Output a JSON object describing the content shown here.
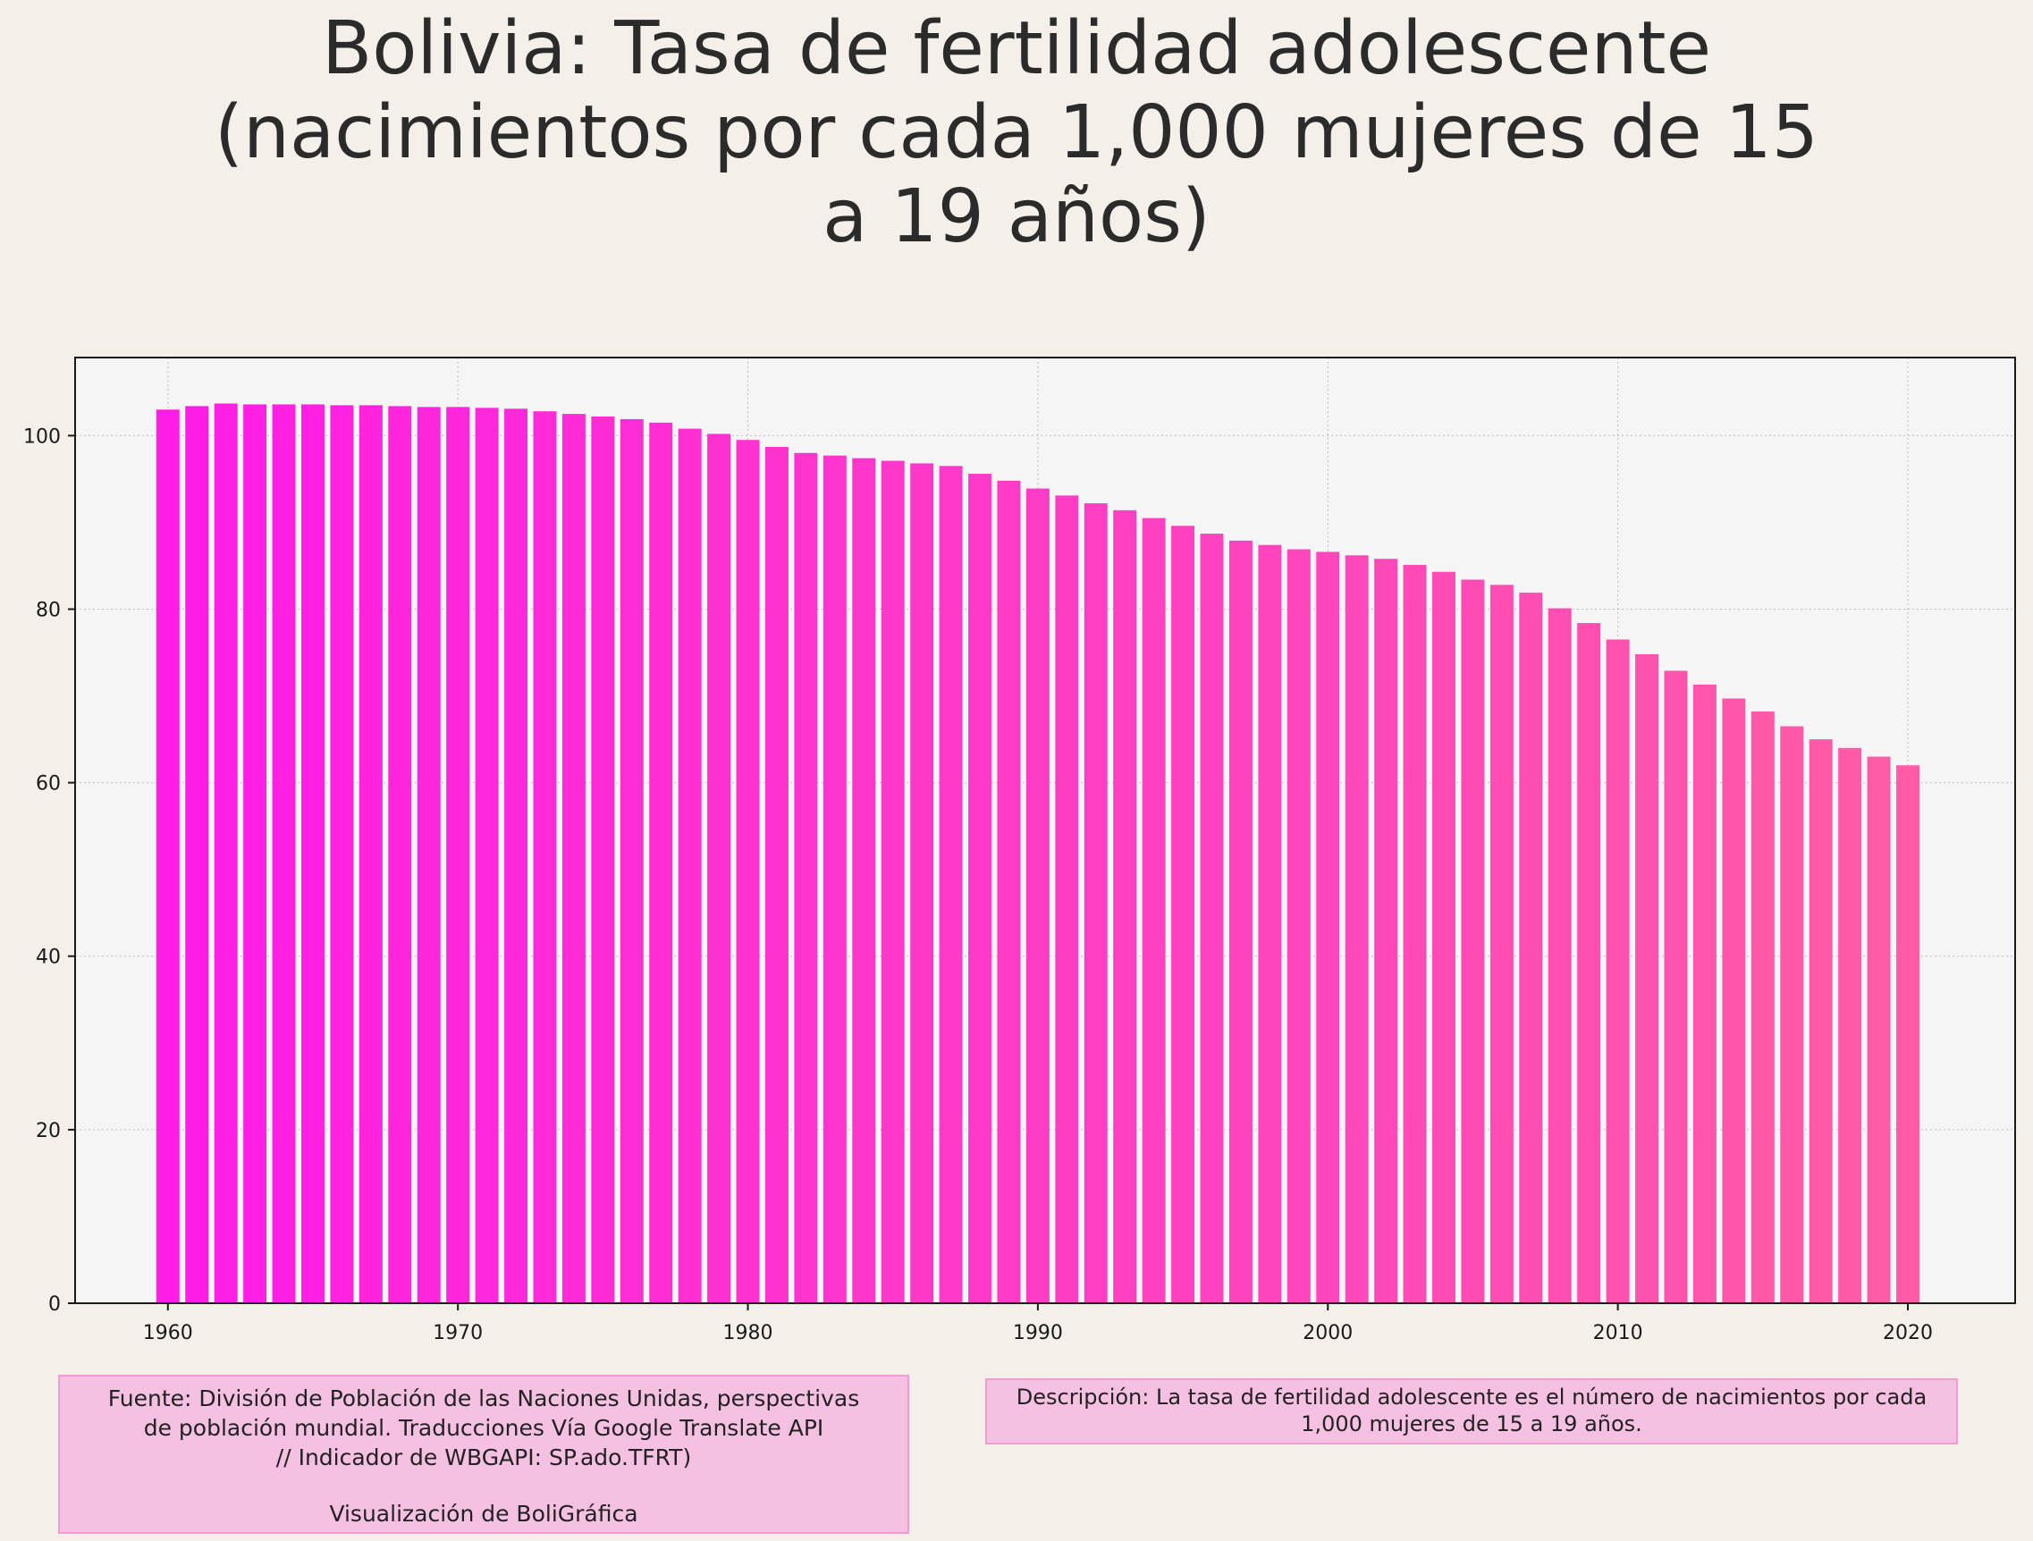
{
  "chart_data": {
    "type": "bar",
    "title": "Bolivia:  Tasa de fertilidad adolescente\n(nacimientos por cada 1,000 mujeres de 15\na 19 años)",
    "xlabel": "",
    "ylabel": "",
    "x": [
      1960,
      1961,
      1962,
      1963,
      1964,
      1965,
      1966,
      1967,
      1968,
      1969,
      1970,
      1971,
      1972,
      1973,
      1974,
      1975,
      1976,
      1977,
      1978,
      1979,
      1980,
      1981,
      1982,
      1983,
      1984,
      1985,
      1986,
      1987,
      1988,
      1989,
      1990,
      1991,
      1992,
      1993,
      1994,
      1995,
      1996,
      1997,
      1998,
      1999,
      2000,
      2001,
      2002,
      2003,
      2004,
      2005,
      2006,
      2007,
      2008,
      2009,
      2010,
      2011,
      2012,
      2013,
      2014,
      2015,
      2016,
      2017,
      2018,
      2019,
      2020
    ],
    "values": [
      103.0,
      103.4,
      103.7,
      103.6,
      103.6,
      103.6,
      103.5,
      103.5,
      103.4,
      103.3,
      103.3,
      103.2,
      103.1,
      102.8,
      102.5,
      102.2,
      101.9,
      101.5,
      100.8,
      100.2,
      99.5,
      98.7,
      98.0,
      97.7,
      97.4,
      97.1,
      96.8,
      96.5,
      95.6,
      94.8,
      93.9,
      93.1,
      92.2,
      91.4,
      90.5,
      89.6,
      88.7,
      87.9,
      87.4,
      86.9,
      86.6,
      86.2,
      85.8,
      85.1,
      84.3,
      83.4,
      82.8,
      81.9,
      80.1,
      78.4,
      76.5,
      74.8,
      72.9,
      71.3,
      69.7,
      68.2,
      66.5,
      65.0,
      64.0,
      63.0,
      62.0
    ],
    "xlim": [
      1956.8,
      2023.7
    ],
    "ylim": [
      0,
      109
    ],
    "xticks": [
      1960,
      1970,
      1980,
      1990,
      2000,
      2010,
      2020
    ],
    "yticks": [
      0,
      20,
      40,
      60,
      80,
      100
    ],
    "grid": true,
    "colors": {
      "start": "#ff1ce6",
      "end": "#ff5ca5",
      "plot_bg": "#f5f5f5",
      "page_bg": "#f4efe8"
    }
  },
  "notes": {
    "source_lines": [
      "Fuente: División de Población de las Naciones Unidas, perspectivas",
      "de población mundial. Traducciones Vía Google Translate API",
      "// Indicador de WBGAPI: SP.ado.TFRT)"
    ],
    "credit": "Visualización de BoliGráfica",
    "description_lines": [
      "Descripción: La tasa de fertilidad adolescente es el número de nacimientos por cada",
      "1,000 mujeres de 15 a 19 años."
    ]
  }
}
